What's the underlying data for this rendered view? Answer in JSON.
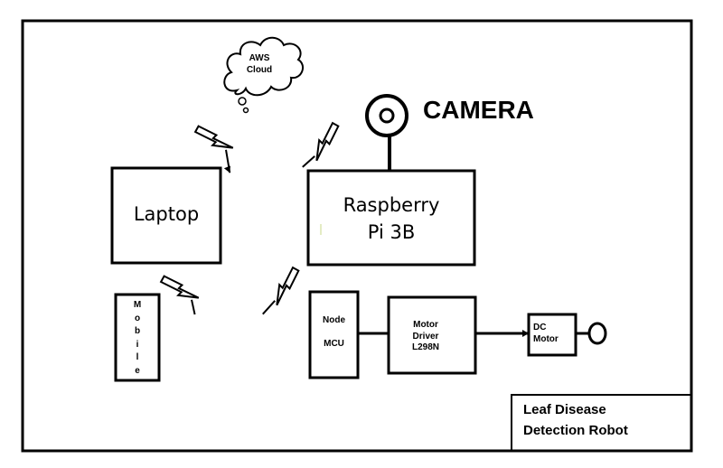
{
  "diagram": {
    "cloud": "AWS\nCloud",
    "camera": "CAMERA",
    "laptop": "Laptop",
    "raspberry": "Raspberry\nPi 3B",
    "mobile": "M\no\nb\ni\nl\ne",
    "nodemcu_top": "Node",
    "nodemcu_bottom": "MCU",
    "motor_driver": "Motor\nDriver\nL298N",
    "dc_motor": "DC\nMotor",
    "title": "Leaf Disease\nDetection Robot"
  },
  "colors": {
    "stroke": "#000000",
    "background": "#ffffff"
  },
  "icons": [
    "lightning-bolt-icon",
    "cloud-icon",
    "camera-icon",
    "motor-shaft-icon"
  ]
}
